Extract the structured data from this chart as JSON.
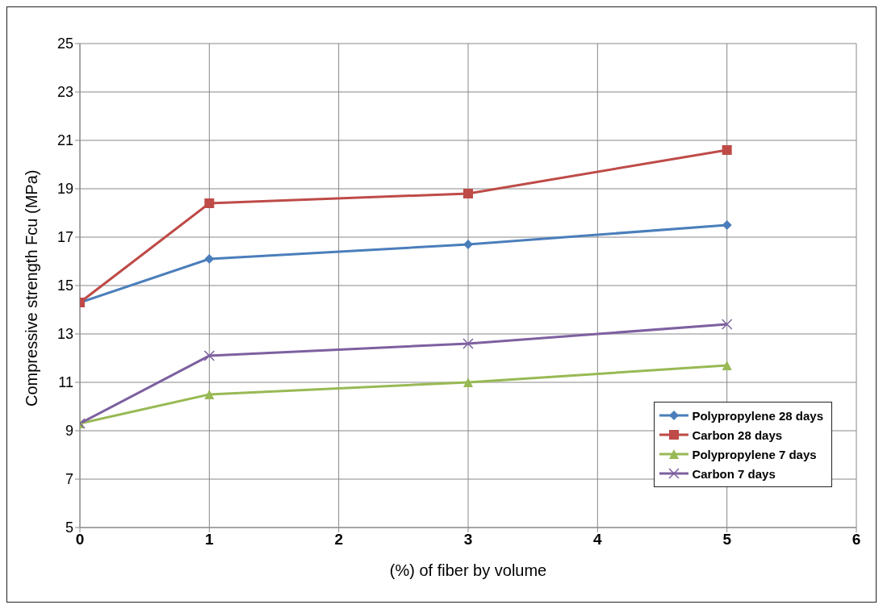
{
  "chart_data": {
    "type": "line",
    "xlabel": "(%) of fiber by volume",
    "ylabel": "Compressive strength Fcu (MPa)",
    "x": [
      0,
      1,
      3,
      5
    ],
    "series": [
      {
        "name": "Polypropylene 28 days",
        "color": "#4a7ebb",
        "values": [
          14.3,
          16.1,
          16.7,
          17.5
        ],
        "marker": "diamond"
      },
      {
        "name": "Carbon 28 days",
        "color": "#be4b48",
        "values": [
          14.3,
          18.4,
          18.8,
          20.6
        ],
        "marker": "square"
      },
      {
        "name": "Polypropylene 7 days",
        "color": "#98b954",
        "values": [
          9.3,
          10.5,
          11.0,
          11.7
        ],
        "marker": "triangle"
      },
      {
        "name": "Carbon 7 days",
        "color": "#7d60a0",
        "values": [
          9.3,
          12.1,
          12.6,
          13.4
        ],
        "marker": "cross"
      }
    ],
    "xlim": [
      0,
      6
    ],
    "xticks": [
      0,
      1,
      2,
      3,
      4,
      5,
      6
    ],
    "ylim": [
      5,
      25
    ],
    "yticks": [
      5,
      7,
      9,
      11,
      13,
      15,
      17,
      19,
      21,
      23,
      25
    ],
    "grid": true,
    "legend": "bottom right",
    "line_style": "solid"
  }
}
